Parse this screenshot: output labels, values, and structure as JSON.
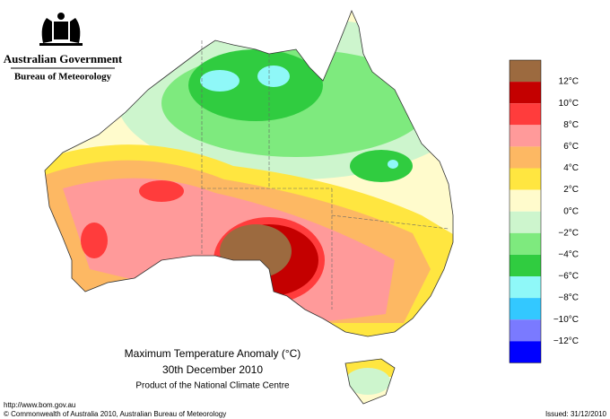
{
  "header": {
    "government": "Australian Government",
    "agency": "Bureau of Meteorology"
  },
  "legend": [
    {
      "color": "#9c6a3f"
    },
    {
      "label": "12°C",
      "color": "#c40000"
    },
    {
      "label": "10°C",
      "color": "#ff3c3c"
    },
    {
      "label": "8°C",
      "color": "#ff9a9a"
    },
    {
      "label": "6°C",
      "color": "#fdb863"
    },
    {
      "label": "4°C",
      "color": "#ffe640"
    },
    {
      "label": "2°C",
      "color": "#fffbcc"
    },
    {
      "label": "0°C",
      "color": "#cdf5cd"
    },
    {
      "label": "−2°C",
      "color": "#7eea7e"
    },
    {
      "label": "−4°C",
      "color": "#30cc40"
    },
    {
      "label": "−6°C",
      "color": "#8ff8f8"
    },
    {
      "label": "−8°C",
      "color": "#33c8ff"
    },
    {
      "label": "−10°C",
      "color": "#7a7aff"
    },
    {
      "label": "−12°C",
      "color": "#0000ff"
    }
  ],
  "title": {
    "line1": "Maximum Temperature Anomaly (°C)",
    "line2": "30th December 2010",
    "line3": "Product of the National Climate Centre"
  },
  "footer": {
    "url": "http://www.bom.gov.au",
    "copyright": "© Commonwealth of Australia 2010, Australian Bureau of Meteorology",
    "issued": "Issued: 31/12/2010"
  }
}
